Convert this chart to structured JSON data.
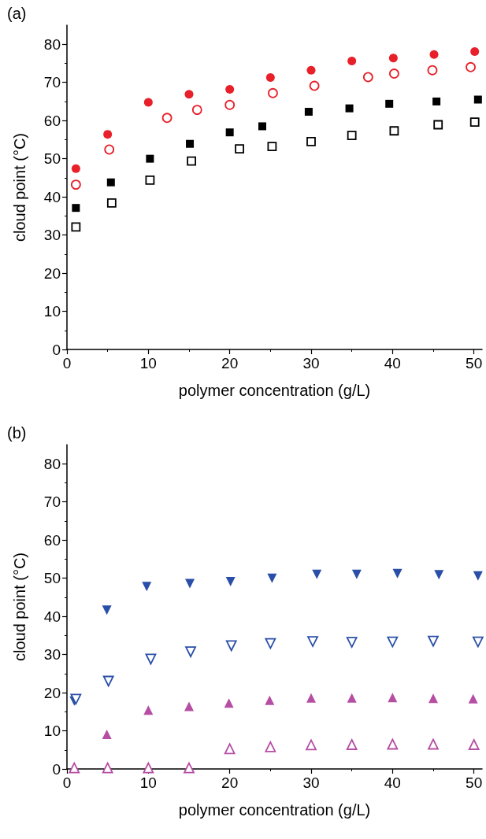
{
  "chart_data": [
    {
      "type": "scatter",
      "title": "(a)",
      "xlabel": "polymer concentration (g/L)",
      "ylabel": "cloud point (°C)",
      "xlim": [
        0,
        51
      ],
      "ylim": [
        0,
        85
      ],
      "xticks": [
        0,
        10,
        20,
        30,
        40,
        50
      ],
      "yticks": [
        0,
        10,
        20,
        30,
        40,
        50,
        60,
        70,
        80
      ],
      "grid": false,
      "series": [
        {
          "color": "#e8202a",
          "marker": "circle",
          "x": [
            1.1,
            5.0,
            10.0,
            15.0,
            20.0,
            25.0,
            30.0,
            35.0,
            40.1,
            45.1,
            50.1
          ],
          "values": [
            47.4,
            56.4,
            64.8,
            66.9,
            68.2,
            71.3,
            73.2,
            75.6,
            76.4,
            77.3,
            78.1
          ]
        },
        {
          "color": "#e8202a",
          "marker": "circle-open",
          "x": [
            1.1,
            5.2,
            12.3,
            16.0,
            20.0,
            25.3,
            30.4,
            37.0,
            40.2,
            44.9,
            49.6
          ],
          "values": [
            43.2,
            52.4,
            60.7,
            62.8,
            64.1,
            67.2,
            69.1,
            71.4,
            72.3,
            73.2,
            74.0
          ]
        },
        {
          "color": "#000000",
          "marker": "square",
          "x": [
            1.1,
            5.4,
            10.2,
            15.1,
            20.0,
            24.0,
            29.7,
            34.7,
            39.6,
            45.4,
            50.5
          ],
          "values": [
            37.1,
            43.8,
            50.0,
            53.9,
            56.9,
            58.5,
            62.3,
            63.2,
            64.4,
            65.0,
            65.5
          ]
        },
        {
          "color": "#000000",
          "marker": "square-open",
          "x": [
            1.1,
            5.5,
            10.2,
            15.3,
            21.2,
            25.2,
            30.0,
            35.0,
            40.2,
            45.6,
            50.1
          ],
          "values": [
            32.1,
            38.4,
            44.4,
            49.4,
            52.6,
            53.2,
            54.5,
            56.1,
            57.3,
            58.9,
            59.6
          ]
        }
      ]
    },
    {
      "type": "scatter",
      "title": "(b)",
      "xlabel": "polymer concentration (g/L)",
      "ylabel": "cloud point (°C)",
      "xlim": [
        0,
        51
      ],
      "ylim": [
        0,
        85
      ],
      "xticks": [
        0,
        10,
        20,
        30,
        40,
        50
      ],
      "yticks": [
        0,
        10,
        20,
        30,
        40,
        50,
        60,
        70,
        80
      ],
      "grid": false,
      "series": [
        {
          "color": "#2a4fa8",
          "marker": "triangle-down",
          "x": [
            0.9,
            4.9,
            9.8,
            15.1,
            20.1,
            25.2,
            30.7,
            35.6,
            40.6,
            45.7,
            50.5
          ],
          "values": [
            17.8,
            41.6,
            47.8,
            48.6,
            49.1,
            50.0,
            51.0,
            51.0,
            51.2,
            50.9,
            50.6
          ]
        },
        {
          "color": "#2a4fa8",
          "marker": "triangle-down-open",
          "x": [
            1.1,
            5.1,
            10.3,
            15.2,
            20.2,
            25.0,
            30.2,
            35.0,
            40.0,
            45.0,
            50.5
          ],
          "values": [
            18.3,
            23.0,
            28.8,
            30.7,
            32.3,
            32.9,
            33.4,
            33.2,
            33.3,
            33.5,
            33.3
          ]
        },
        {
          "color": "#b64ea4",
          "marker": "triangle",
          "x": [
            4.9,
            10.0,
            15.0,
            19.9,
            24.9,
            30.0,
            35.0,
            40.0,
            45.0,
            49.9
          ],
          "values": [
            9.1,
            15.4,
            16.4,
            17.3,
            18.0,
            18.6,
            18.6,
            18.7,
            18.5,
            18.4
          ]
        },
        {
          "color": "#b64ea4",
          "marker": "triangle-open",
          "x": [
            0.9,
            5.0,
            10.0,
            15.0,
            20.0,
            25.0,
            30.0,
            35.0,
            40.0,
            45.0,
            50.0
          ],
          "values": [
            0.3,
            0.3,
            0.3,
            0.3,
            5.3,
            5.8,
            6.3,
            6.4,
            6.5,
            6.5,
            6.4
          ]
        }
      ]
    }
  ]
}
